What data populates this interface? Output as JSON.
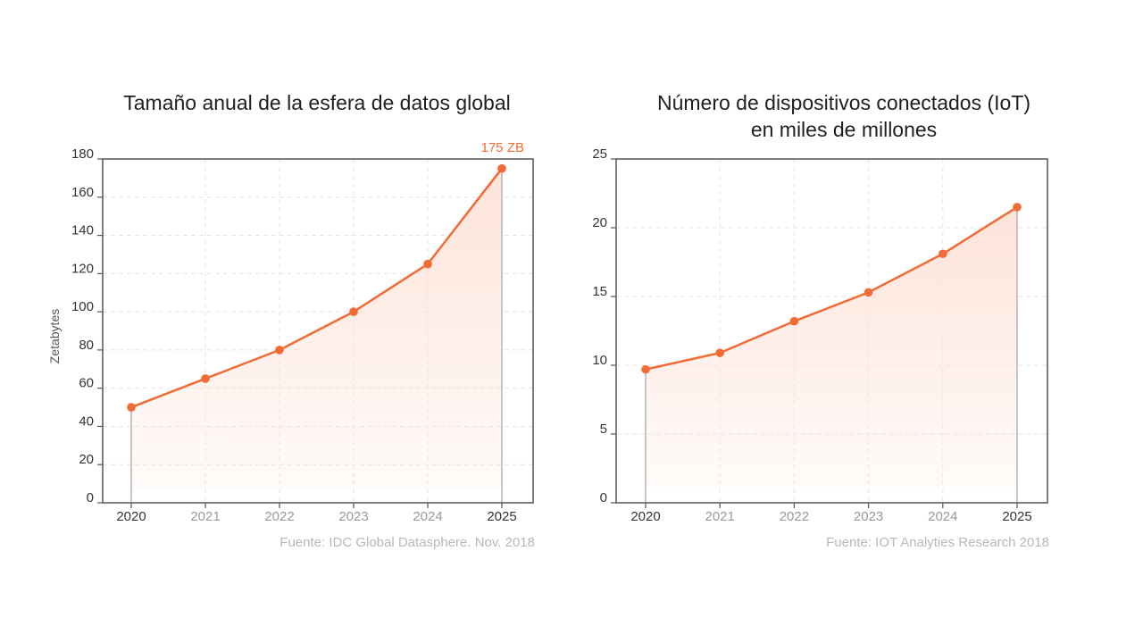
{
  "charts": {
    "left": {
      "title_lines": [
        "Tamaño anual de la esfera de datos global"
      ],
      "source": "Fuente: IDC Global Datasphere. Nov. 2018",
      "callout": "175 ZB"
    },
    "right": {
      "title_lines": [
        "Número de dispositivos conectados (IoT)",
        "en miles de millones"
      ],
      "source": "Fuente: IOT Analyties Research 2018"
    }
  },
  "colors": {
    "line": "#f26a35",
    "fill": "#fde3d9",
    "axis": "#555555",
    "grid": "#e4e4e4",
    "tick_text": "#9a9a9a",
    "tick_text_dark": "#333333"
  },
  "chart_data": [
    {
      "type": "area",
      "title": "Tamaño anual de la esfera de datos global",
      "x": [
        "2020",
        "2021",
        "2022",
        "2023",
        "2024",
        "2025"
      ],
      "series": [
        {
          "values": [
            50,
            65,
            80,
            100,
            125,
            175
          ]
        }
      ],
      "xlabel": "",
      "ylabel": "Zetabytes",
      "ylim": [
        0,
        180
      ],
      "yticks": [
        0,
        20,
        40,
        60,
        80,
        100,
        120,
        140,
        160,
        180
      ],
      "highlight_x": [
        "2020",
        "2025"
      ],
      "annotations": [
        {
          "x": "2025",
          "text": "175 ZB"
        }
      ],
      "grid": true
    },
    {
      "type": "area",
      "title": "Número de dispositivos conectados (IoT) en miles de millones",
      "x": [
        "2020",
        "2021",
        "2022",
        "2023",
        "2024",
        "2025"
      ],
      "series": [
        {
          "values": [
            9.7,
            10.9,
            13.2,
            15.3,
            18.1,
            21.5
          ]
        }
      ],
      "xlabel": "",
      "ylabel": "",
      "ylim": [
        0,
        25
      ],
      "yticks": [
        0,
        5,
        10,
        15,
        20,
        25
      ],
      "highlight_x": [
        "2020",
        "2025"
      ],
      "grid": true
    }
  ]
}
